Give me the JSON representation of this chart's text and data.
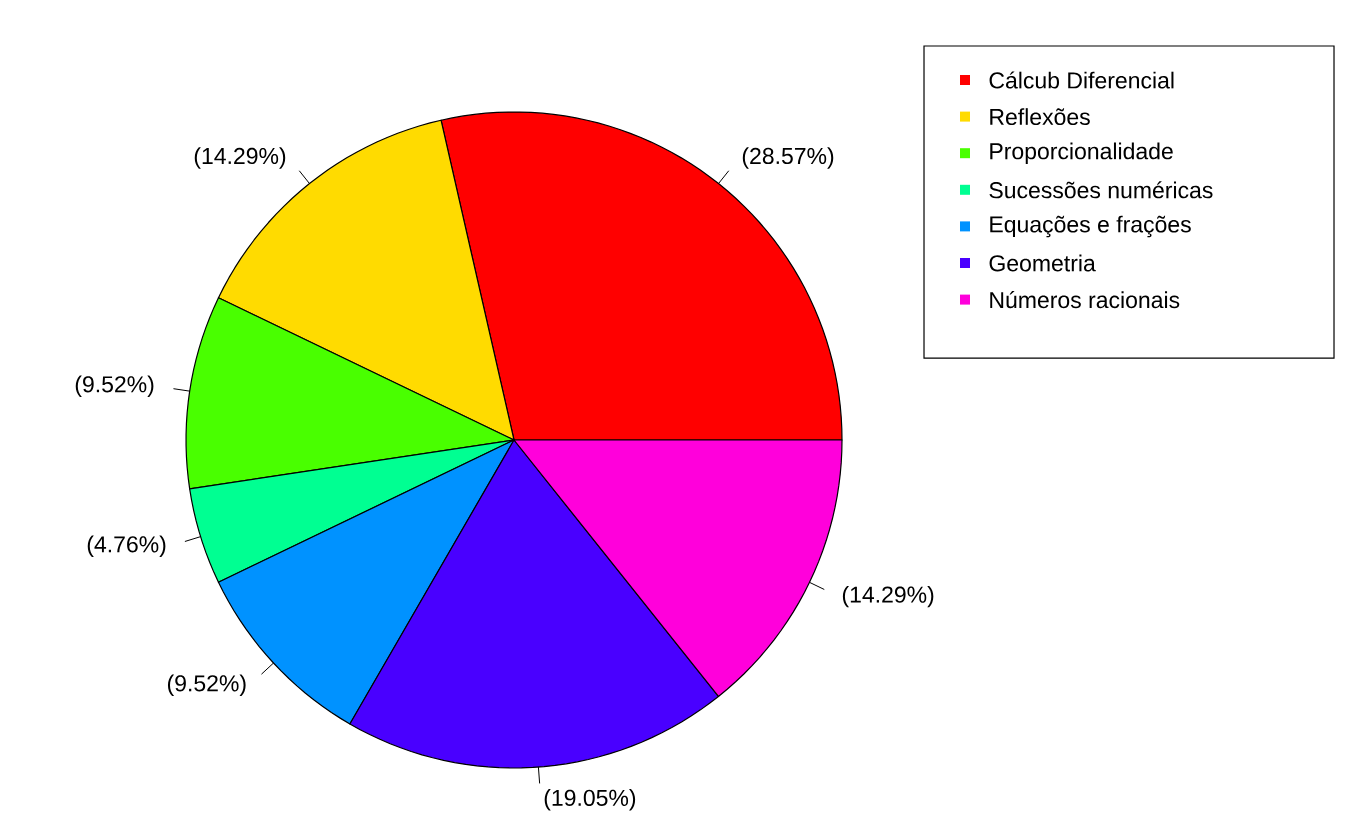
{
  "chart_data": {
    "type": "pie",
    "categories": [
      "Cálcub Diferencial",
      "Reflexões",
      "Proporcionalidade",
      "Sucessões numéricas",
      "Equações e frações",
      "Geometria",
      "Números racionais"
    ],
    "values": [
      28.57,
      14.29,
      9.52,
      4.76,
      9.52,
      19.05,
      14.29
    ],
    "colors": [
      "#ff0000",
      "#ffdb00",
      "#49ff00",
      "#00ff92",
      "#0092ff",
      "#4900ff",
      "#ff00db"
    ],
    "value_labels": [
      "(28.57%)",
      "(14.29%)",
      "(9.52%)",
      "(4.76%)",
      "(9.52%)",
      "(19.05%)",
      "(14.29%)"
    ],
    "legend": "top right"
  }
}
